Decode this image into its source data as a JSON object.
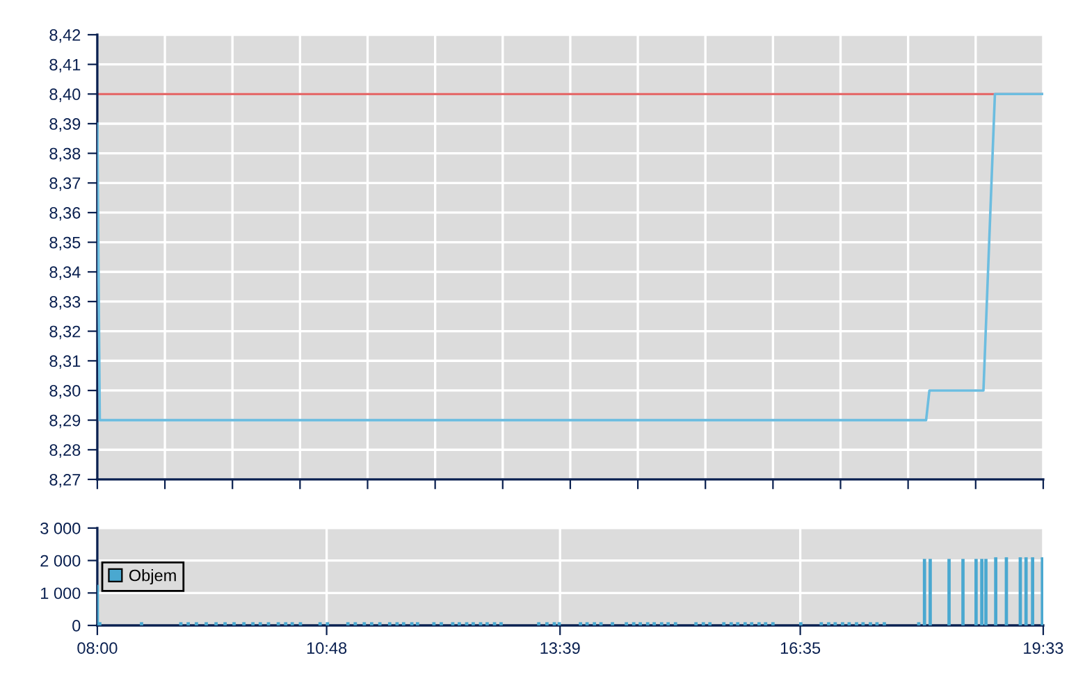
{
  "chart_data": [
    {
      "type": "line",
      "x": [
        8,
        8.03,
        18.12,
        18.16,
        18.82,
        18.96,
        19.55
      ],
      "series": [
        {
          "color": "#6cbde0",
          "values": [
            8.39,
            8.29,
            8.29,
            8.3,
            8.3,
            8.4,
            8.4
          ]
        }
      ],
      "xlim": [
        8,
        19.55
      ],
      "xticks": [
        {
          "value": 8,
          "label": null
        },
        {
          "value": 8.825,
          "label": null
        },
        {
          "value": 9.65,
          "label": null
        },
        {
          "value": 10.475,
          "label": null
        },
        {
          "value": 11.3,
          "label": null
        },
        {
          "value": 12.125,
          "label": null
        },
        {
          "value": 12.95,
          "label": null
        },
        {
          "value": 13.775,
          "label": null
        },
        {
          "value": 14.6,
          "label": null
        },
        {
          "value": 15.425,
          "label": null
        },
        {
          "value": 16.25,
          "label": null
        },
        {
          "value": 17.075,
          "label": null
        },
        {
          "value": 17.9,
          "label": null
        },
        {
          "value": 18.725,
          "label": null
        },
        {
          "value": 19.55,
          "label": null
        }
      ],
      "ylim": [
        8.27,
        8.42
      ],
      "yticks": [
        {
          "value": 8.27,
          "label": "8,27"
        },
        {
          "value": 8.28,
          "label": "8,28"
        },
        {
          "value": 8.29,
          "label": "8,29"
        },
        {
          "value": 8.3,
          "label": "8,30"
        },
        {
          "value": 8.31,
          "label": "8,31"
        },
        {
          "value": 8.32,
          "label": "8,32"
        },
        {
          "value": 8.33,
          "label": "8,33"
        },
        {
          "value": 8.34,
          "label": "8,34"
        },
        {
          "value": 8.35,
          "label": "8,35"
        },
        {
          "value": 8.36,
          "label": "8,36"
        },
        {
          "value": 8.37,
          "label": "8,37"
        },
        {
          "value": 8.38,
          "label": "8,38"
        },
        {
          "value": 8.39,
          "label": "8,39"
        },
        {
          "value": 8.4,
          "label": "8,40"
        },
        {
          "value": 8.41,
          "label": "8,41"
        },
        {
          "value": 8.42,
          "label": "8,42"
        }
      ],
      "ref_lines": [
        {
          "axis": "y",
          "value": 8.4,
          "color": "#e46a6a"
        }
      ],
      "tick_labels": "y",
      "grid": true,
      "marker": "none",
      "line_style": "solid"
    },
    {
      "type": "bar",
      "x": [
        8.0,
        8.03,
        8.54,
        9.02,
        9.11,
        9.21,
        9.33,
        9.45,
        9.56,
        9.67,
        9.79,
        9.9,
        9.99,
        10.09,
        10.21,
        10.3,
        10.38,
        10.48,
        10.72,
        10.81,
        11.06,
        11.15,
        11.26,
        11.35,
        11.45,
        11.57,
        11.66,
        11.74,
        11.84,
        11.91,
        12.11,
        12.2,
        12.34,
        12.42,
        12.51,
        12.59,
        12.68,
        12.76,
        12.85,
        12.93,
        13.39,
        13.49,
        13.58,
        13.64,
        13.9,
        13.98,
        14.07,
        14.15,
        14.29,
        14.46,
        14.55,
        14.63,
        14.72,
        14.8,
        14.89,
        14.97,
        15.06,
        15.31,
        15.4,
        15.48,
        15.65,
        15.74,
        15.82,
        15.91,
        15.99,
        16.08,
        16.16,
        16.25,
        16.59,
        16.84,
        16.93,
        17.01,
        17.1,
        17.18,
        17.27,
        17.35,
        17.44,
        17.52,
        17.61,
        18.03,
        18.1,
        18.17,
        18.4,
        18.57,
        18.73,
        18.8,
        18.85,
        18.97,
        19.1,
        19.27,
        19.34,
        19.42,
        19.54
      ],
      "series": [
        {
          "name": "Objem",
          "color": "#4aa8d0",
          "values": [
            1250,
            100,
            100,
            100,
            100,
            100,
            100,
            100,
            100,
            100,
            100,
            100,
            100,
            100,
            100,
            100,
            100,
            100,
            100,
            100,
            100,
            100,
            100,
            100,
            100,
            100,
            100,
            100,
            100,
            100,
            100,
            100,
            100,
            100,
            100,
            100,
            100,
            100,
            100,
            100,
            100,
            100,
            100,
            100,
            100,
            100,
            100,
            100,
            100,
            100,
            100,
            100,
            100,
            100,
            100,
            100,
            100,
            100,
            100,
            100,
            100,
            100,
            100,
            100,
            100,
            100,
            100,
            100,
            100,
            100,
            100,
            100,
            100,
            100,
            100,
            100,
            100,
            100,
            100,
            100,
            2050,
            2050,
            2050,
            2050,
            2050,
            2050,
            2050,
            2100,
            2100,
            2100,
            2100,
            2100,
            2100
          ]
        }
      ],
      "xlim": [
        8,
        19.55
      ],
      "xticks": [
        {
          "value": 8,
          "label": "08:00"
        },
        {
          "value": 10.8,
          "label": "10:48"
        },
        {
          "value": 13.65,
          "label": "13:39"
        },
        {
          "value": 16.5833,
          "label": "16:35"
        },
        {
          "value": 19.55,
          "label": "19:33"
        }
      ],
      "ylim": [
        0,
        3000
      ],
      "yticks": [
        0,
        {
          "value": 1000,
          "label": "1 000"
        },
        {
          "value": 2000,
          "label": "2 000"
        },
        {
          "value": 3000,
          "label": "3 000"
        }
      ],
      "grid": true,
      "legend": "left"
    }
  ]
}
